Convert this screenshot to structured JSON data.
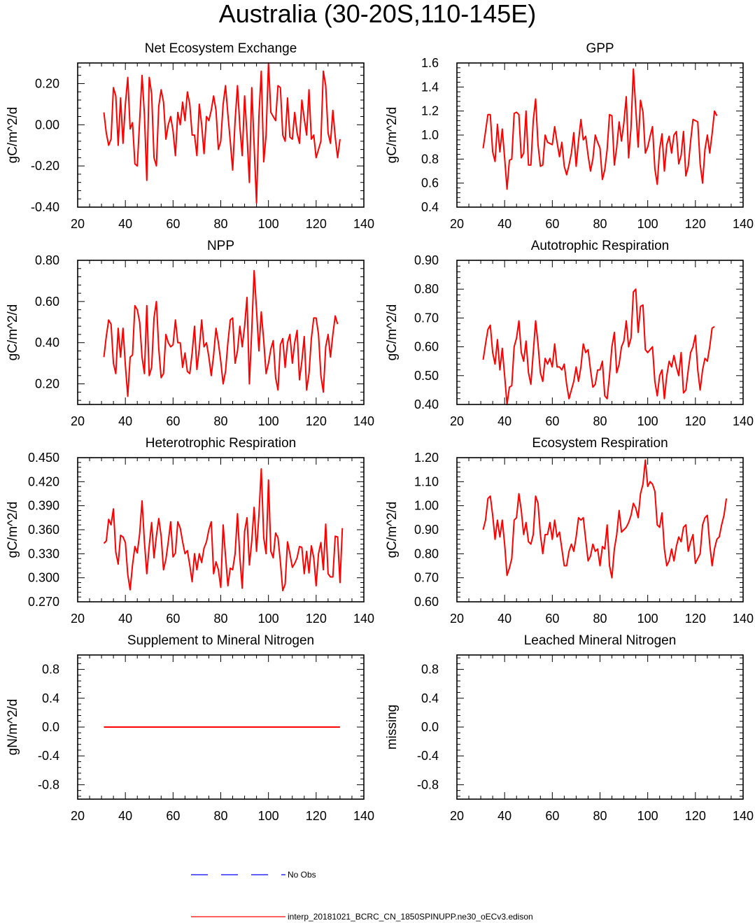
{
  "title": "Australia (30-20S,110-145E)",
  "colors": {
    "model": "#ff0000",
    "obs": "#0000ff",
    "axis": "#000000"
  },
  "chart_data": [
    {
      "type": "line",
      "title": "Net Ecosystem Exchange",
      "ylabel": "gC/m^2/d",
      "xlim": [
        20,
        140
      ],
      "ylim": [
        -0.4,
        0.3
      ],
      "x_ticks": [
        "20",
        "40",
        "60",
        "80",
        "100",
        "120",
        "140"
      ],
      "y_ticks": [
        {
          "v": -0.4,
          "label": "-0.40"
        },
        {
          "v": -0.2,
          "label": "-0.20"
        },
        {
          "v": 0.0,
          "label": "0.00"
        },
        {
          "v": 0.2,
          "label": "0.20"
        }
      ],
      "x_start": 31,
      "values": [
        0.06,
        -0.04,
        -0.1,
        -0.07,
        0.18,
        0.14,
        -0.1,
        0.13,
        -0.09,
        0.1,
        0.23,
        -0.02,
        0.01,
        -0.19,
        -0.2,
        0.02,
        0.24,
        0.05,
        -0.27,
        0.23,
        0.15,
        -0.16,
        -0.2,
        0.09,
        0.17,
        0.11,
        -0.07,
        0.0,
        0.04,
        -0.03,
        -0.15,
        0.06,
        0.0,
        0.11,
        0.02,
        0.16,
        0.1,
        -0.05,
        -0.05,
        -0.15,
        0.1,
        0.0,
        -0.14,
        0.04,
        0.02,
        0.07,
        0.14,
        0.07,
        -0.12,
        -0.08,
        0.1,
        0.19,
        0.05,
        -0.08,
        -0.22,
        0.02,
        0.19,
        -0.01,
        -0.15,
        0.14,
        -0.05,
        -0.28,
        0.18,
        -0.1,
        -0.38,
        0.04,
        0.26,
        -0.18,
        -0.05,
        0.3,
        0.06,
        0.04,
        0.02,
        0.19,
        0.18,
        -0.05,
        -0.08,
        0.13,
        -0.06,
        -0.07,
        0.06,
        -0.04,
        -0.09,
        0.12,
        0.03,
        -0.05,
        0.17,
        -0.07,
        -0.05,
        -0.16,
        -0.12,
        -0.08,
        0.26,
        0.19,
        -0.04,
        -0.09,
        0.07,
        -0.06,
        -0.16,
        -0.07
      ]
    },
    {
      "type": "line",
      "title": "GPP",
      "ylabel": "gC/m^2/d",
      "xlim": [
        20,
        140
      ],
      "ylim": [
        0.4,
        1.6
      ],
      "x_ticks": [
        "20",
        "40",
        "60",
        "80",
        "100",
        "120",
        "140"
      ],
      "y_ticks": [
        {
          "v": 0.4,
          "label": "0.4"
        },
        {
          "v": 0.6,
          "label": "0.6"
        },
        {
          "v": 0.8,
          "label": "0.8"
        },
        {
          "v": 1.0,
          "label": "1.0"
        },
        {
          "v": 1.2,
          "label": "1.2"
        },
        {
          "v": 1.4,
          "label": "1.4"
        },
        {
          "v": 1.6,
          "label": "1.6"
        }
      ],
      "x_start": 31,
      "values": [
        0.89,
        1.03,
        1.17,
        1.17,
        0.86,
        0.78,
        1.09,
        0.86,
        1.05,
        0.81,
        0.55,
        0.79,
        0.8,
        1.18,
        1.19,
        1.17,
        0.81,
        0.85,
        1.2,
        0.75,
        0.75,
        1.12,
        1.3,
        0.92,
        0.74,
        0.75,
        1.0,
        0.94,
        0.93,
        0.92,
        1.07,
        0.94,
        0.82,
        0.94,
        0.74,
        0.67,
        0.75,
        0.85,
        1.02,
        0.74,
        0.95,
        1.13,
        0.96,
        0.99,
        0.83,
        0.7,
        0.8,
        1.0,
        0.94,
        0.89,
        0.63,
        0.71,
        0.88,
        1.17,
        1.16,
        0.75,
        0.9,
        1.11,
        0.95,
        1.1,
        1.32,
        0.81,
        1.06,
        1.55,
        1.22,
        0.9,
        1.29,
        1.19,
        0.85,
        0.9,
        0.99,
        1.07,
        0.72,
        0.59,
        0.88,
        1.01,
        0.7,
        0.92,
        0.99,
        0.85,
        1.0,
        1.03,
        0.76,
        0.83,
        1.03,
        0.66,
        0.74,
        0.95,
        1.13,
        1.12,
        1.11,
        0.76,
        0.6,
        0.88,
        1.0,
        0.85,
        1.01,
        1.2,
        1.16
      ]
    },
    {
      "type": "line",
      "title": "NPP",
      "ylabel": "gC/m^2/d",
      "xlim": [
        20,
        140
      ],
      "ylim": [
        0.1,
        0.8
      ],
      "x_ticks": [
        "20",
        "40",
        "60",
        "80",
        "100",
        "120",
        "140"
      ],
      "y_ticks": [
        {
          "v": 0.2,
          "label": "0.20"
        },
        {
          "v": 0.4,
          "label": "0.40"
        },
        {
          "v": 0.6,
          "label": "0.60"
        },
        {
          "v": 0.8,
          "label": "0.80"
        }
      ],
      "x_start": 31,
      "values": [
        0.33,
        0.43,
        0.51,
        0.49,
        0.3,
        0.25,
        0.47,
        0.33,
        0.47,
        0.29,
        0.14,
        0.33,
        0.34,
        0.58,
        0.56,
        0.5,
        0.33,
        0.25,
        0.58,
        0.24,
        0.28,
        0.52,
        0.6,
        0.37,
        0.23,
        0.25,
        0.44,
        0.4,
        0.38,
        0.39,
        0.51,
        0.4,
        0.4,
        0.28,
        0.35,
        0.26,
        0.25,
        0.35,
        0.48,
        0.27,
        0.37,
        0.51,
        0.38,
        0.4,
        0.33,
        0.24,
        0.34,
        0.47,
        0.4,
        0.31,
        0.2,
        0.26,
        0.4,
        0.51,
        0.52,
        0.3,
        0.36,
        0.48,
        0.38,
        0.48,
        0.62,
        0.2,
        0.46,
        0.75,
        0.56,
        0.36,
        0.55,
        0.41,
        0.25,
        0.3,
        0.37,
        0.41,
        0.23,
        0.17,
        0.39,
        0.42,
        0.28,
        0.4,
        0.44,
        0.3,
        0.4,
        0.46,
        0.22,
        0.31,
        0.43,
        0.17,
        0.25,
        0.42,
        0.52,
        0.52,
        0.44,
        0.24,
        0.16,
        0.38,
        0.44,
        0.33,
        0.44,
        0.53,
        0.49
      ]
    },
    {
      "type": "line",
      "title": "Autotrophic Respiration",
      "ylabel": "gC/m^2/d",
      "xlim": [
        20,
        140
      ],
      "ylim": [
        0.4,
        0.9
      ],
      "x_ticks": [
        "20",
        "40",
        "60",
        "80",
        "100",
        "120",
        "140"
      ],
      "y_ticks": [
        {
          "v": 0.4,
          "label": "0.40"
        },
        {
          "v": 0.5,
          "label": "0.50"
        },
        {
          "v": 0.6,
          "label": "0.60"
        },
        {
          "v": 0.7,
          "label": "0.70"
        },
        {
          "v": 0.8,
          "label": "0.80"
        },
        {
          "v": 0.9,
          "label": "0.90"
        }
      ],
      "x_start": 31,
      "values": [
        0.555,
        0.61,
        0.66,
        0.675,
        0.58,
        0.54,
        0.625,
        0.52,
        0.595,
        0.5,
        0.4,
        0.46,
        0.465,
        0.6,
        0.63,
        0.69,
        0.58,
        0.55,
        0.62,
        0.51,
        0.47,
        0.58,
        0.69,
        0.61,
        0.51,
        0.48,
        0.56,
        0.54,
        0.56,
        0.53,
        0.61,
        0.53,
        0.53,
        0.52,
        0.54,
        0.47,
        0.42,
        0.45,
        0.48,
        0.53,
        0.48,
        0.53,
        0.61,
        0.58,
        0.59,
        0.52,
        0.46,
        0.47,
        0.52,
        0.52,
        0.55,
        0.43,
        0.42,
        0.5,
        0.6,
        0.65,
        0.51,
        0.54,
        0.6,
        0.62,
        0.69,
        0.6,
        0.63,
        0.79,
        0.8,
        0.65,
        0.74,
        0.745,
        0.59,
        0.58,
        0.59,
        0.6,
        0.48,
        0.43,
        0.5,
        0.52,
        0.42,
        0.5,
        0.55,
        0.53,
        0.57,
        0.53,
        0.5,
        0.58,
        0.44,
        0.45,
        0.52,
        0.58,
        0.6,
        0.64,
        0.52,
        0.45,
        0.52,
        0.56,
        0.55,
        0.6,
        0.665,
        0.67
      ]
    },
    {
      "type": "line",
      "title": "Heterotrophic Respiration",
      "ylabel": "gC/m^2/d",
      "xlim": [
        20,
        140
      ],
      "ylim": [
        0.27,
        0.45
      ],
      "x_ticks": [
        "20",
        "40",
        "60",
        "80",
        "100",
        "120",
        "140"
      ],
      "y_ticks": [
        {
          "v": 0.27,
          "label": "0.270"
        },
        {
          "v": 0.3,
          "label": "0.300"
        },
        {
          "v": 0.33,
          "label": "0.330"
        },
        {
          "v": 0.36,
          "label": "0.360"
        },
        {
          "v": 0.39,
          "label": "0.390"
        },
        {
          "v": 0.42,
          "label": "0.420"
        },
        {
          "v": 0.45,
          "label": "0.450"
        }
      ],
      "x_start": 31,
      "values": [
        0.343,
        0.346,
        0.373,
        0.366,
        0.386,
        0.332,
        0.317,
        0.353,
        0.351,
        0.344,
        0.304,
        0.285,
        0.316,
        0.339,
        0.331,
        0.355,
        0.396,
        0.345,
        0.305,
        0.34,
        0.369,
        0.325,
        0.352,
        0.374,
        0.352,
        0.31,
        0.323,
        0.345,
        0.37,
        0.326,
        0.331,
        0.37,
        0.362,
        0.345,
        0.33,
        0.334,
        0.316,
        0.295,
        0.33,
        0.31,
        0.33,
        0.319,
        0.337,
        0.345,
        0.36,
        0.37,
        0.305,
        0.32,
        0.31,
        0.288,
        0.366,
        0.327,
        0.29,
        0.312,
        0.31,
        0.33,
        0.38,
        0.325,
        0.287,
        0.358,
        0.375,
        0.316,
        0.346,
        0.388,
        0.333,
        0.378,
        0.436,
        0.35,
        0.33,
        0.422,
        0.333,
        0.325,
        0.356,
        0.35,
        0.32,
        0.284,
        0.292,
        0.345,
        0.33,
        0.313,
        0.318,
        0.325,
        0.339,
        0.338,
        0.305,
        0.333,
        0.306,
        0.34,
        0.325,
        0.29,
        0.33,
        0.344,
        0.31,
        0.367,
        0.305,
        0.301,
        0.301,
        0.352,
        0.351,
        0.294,
        0.362
      ]
    },
    {
      "type": "line",
      "title": "Ecosystem Respiration",
      "ylabel": "gC/m^2/d",
      "xlim": [
        20,
        140
      ],
      "ylim": [
        0.6,
        1.2
      ],
      "x_ticks": [
        "20",
        "40",
        "60",
        "80",
        "100",
        "120",
        "140"
      ],
      "y_ticks": [
        {
          "v": 0.6,
          "label": "0.60"
        },
        {
          "v": 0.7,
          "label": "0.70"
        },
        {
          "v": 0.8,
          "label": "0.80"
        },
        {
          "v": 0.9,
          "label": "0.90"
        },
        {
          "v": 1.0,
          "label": "1.00"
        },
        {
          "v": 1.1,
          "label": "1.10"
        },
        {
          "v": 1.2,
          "label": "1.20"
        }
      ],
      "x_start": 31,
      "values": [
        0.9,
        0.94,
        1.03,
        1.04,
        0.96,
        0.86,
        0.94,
        0.87,
        0.94,
        0.84,
        0.71,
        0.74,
        0.78,
        0.94,
        0.95,
        1.05,
        0.98,
        0.88,
        0.93,
        0.85,
        0.84,
        0.88,
        1.04,
        1.01,
        0.88,
        0.8,
        0.88,
        0.88,
        0.93,
        0.86,
        0.94,
        0.87,
        0.89,
        0.82,
        0.75,
        0.75,
        0.81,
        0.84,
        0.81,
        0.87,
        0.95,
        0.94,
        0.95,
        0.86,
        0.77,
        0.79,
        0.84,
        0.81,
        0.82,
        0.75,
        0.83,
        0.82,
        0.92,
        0.75,
        0.7,
        0.82,
        0.88,
        0.98,
        0.89,
        0.9,
        0.91,
        0.93,
        0.96,
        1.01,
        0.99,
        0.95,
        1.05,
        1.09,
        1.19,
        1.08,
        1.1,
        1.09,
        1.06,
        0.92,
        0.91,
        0.97,
        0.82,
        0.75,
        0.77,
        0.82,
        0.77,
        0.83,
        0.87,
        0.85,
        0.91,
        0.92,
        0.81,
        0.85,
        0.88,
        0.76,
        0.78,
        0.8,
        0.92,
        0.95,
        0.96,
        0.84,
        0.75,
        0.82,
        0.86,
        0.87,
        0.92,
        0.96,
        1.03
      ]
    },
    {
      "type": "line",
      "title": "Supplement to Mineral Nitrogen",
      "ylabel": "gN/m^2/d",
      "xlim": [
        20,
        140
      ],
      "ylim": [
        -1.0,
        1.0
      ],
      "x_ticks": [
        "20",
        "40",
        "60",
        "80",
        "100",
        "120",
        "140"
      ],
      "y_ticks": [
        {
          "v": -0.8,
          "label": "-0.8"
        },
        {
          "v": -0.4,
          "label": "-0.4"
        },
        {
          "v": 0.0,
          "label": "0.0"
        },
        {
          "v": 0.4,
          "label": "0.4"
        },
        {
          "v": 0.8,
          "label": "0.8"
        }
      ],
      "x_start": 31,
      "constant": {
        "x_end": 130,
        "value": 0.0
      }
    },
    {
      "type": "line",
      "title": "Leached Mineral Nitrogen",
      "ylabel": "missing",
      "xlim": [
        20,
        140
      ],
      "ylim": [
        -1.0,
        1.0
      ],
      "x_ticks": [
        "20",
        "40",
        "60",
        "80",
        "100",
        "120",
        "140"
      ],
      "y_ticks": [
        {
          "v": -0.8,
          "label": "-0.8"
        },
        {
          "v": -0.4,
          "label": "-0.4"
        },
        {
          "v": 0.0,
          "label": "0.0"
        },
        {
          "v": 0.4,
          "label": "0.4"
        },
        {
          "v": 0.8,
          "label": "0.8"
        }
      ],
      "values": []
    }
  ],
  "legend": {
    "obs_label": "No Obs",
    "model_label": "interp_20181021_BCRC_CN_1850SPINUPP.ne30_oECv3.edison"
  }
}
